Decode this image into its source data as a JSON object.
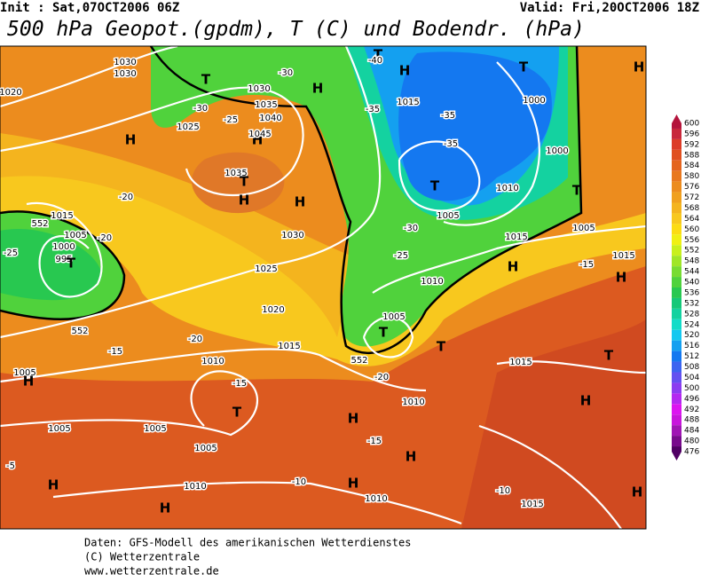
{
  "header": {
    "init": "Init : Sat,07OCT2006 06Z",
    "valid": "Valid: Fri,20OCT2006 18Z",
    "title": "500 hPa Geopot.(gpdm), T (C) und Bodendr. (hPa)"
  },
  "map": {
    "labels": [
      "1030",
      "1030",
      "1020",
      "T",
      "1030",
      "-30",
      "H",
      "1035",
      "1040",
      "-30",
      "-25",
      "1025",
      "H",
      "1045",
      "H",
      "T",
      "-40",
      "H",
      "T",
      "H",
      "1015",
      "-35",
      "-35",
      "1000",
      "-35",
      "1000",
      "T",
      "1010",
      "T",
      "1035",
      "T",
      "H",
      "H",
      "-20",
      "1015",
      "552",
      "1005",
      "-20",
      "1000",
      "995",
      "-25",
      "T",
      "1030",
      "1005",
      "-30",
      "1015",
      "1005",
      "1025",
      "-25",
      "H",
      "-15",
      "1015",
      "H",
      "1010",
      "1020",
      "1005",
      "552",
      "T",
      "-20",
      "1015",
      "-15",
      "1010",
      "552",
      "T",
      "1015",
      "T",
      "1005",
      "H",
      "-20",
      "-15",
      "H",
      "1010",
      "T",
      "H",
      "1005",
      "1005",
      "-15",
      "1005",
      "H",
      "-5",
      "H",
      "1010",
      "-10",
      "H",
      "-10",
      "1015",
      "1010",
      "H",
      "H"
    ]
  },
  "colorbar": {
    "labels": [
      600,
      596,
      592,
      588,
      584,
      580,
      576,
      572,
      568,
      564,
      560,
      556,
      552,
      548,
      544,
      540,
      536,
      532,
      528,
      524,
      520,
      516,
      512,
      508,
      504,
      500,
      496,
      492,
      488,
      484,
      480,
      476
    ],
    "colors": [
      "#b4143c",
      "#c8283c",
      "#dc3c28",
      "#e05020",
      "#e4641e",
      "#e8781e",
      "#ec8c1e",
      "#f0a01e",
      "#f4b41e",
      "#f8c81e",
      "#fcdc14",
      "#f0f014",
      "#c8f01e",
      "#a0e628",
      "#78dc32",
      "#50d23c",
      "#28c850",
      "#14c878",
      "#14d2a0",
      "#14dcc8",
      "#14c8f0",
      "#14a0f0",
      "#1478f0",
      "#3c64f0",
      "#6450f0",
      "#8c3cf0",
      "#b428f0",
      "#dc14f0",
      "#c814dc",
      "#a014b4",
      "#780a8c",
      "#500064"
    ]
  },
  "footer": {
    "lines": [
      "Daten: GFS-Modell des amerikanischen Wetterdienstes",
      "(C) Wetterzentrale",
      "www.wetterzentrale.de"
    ]
  }
}
